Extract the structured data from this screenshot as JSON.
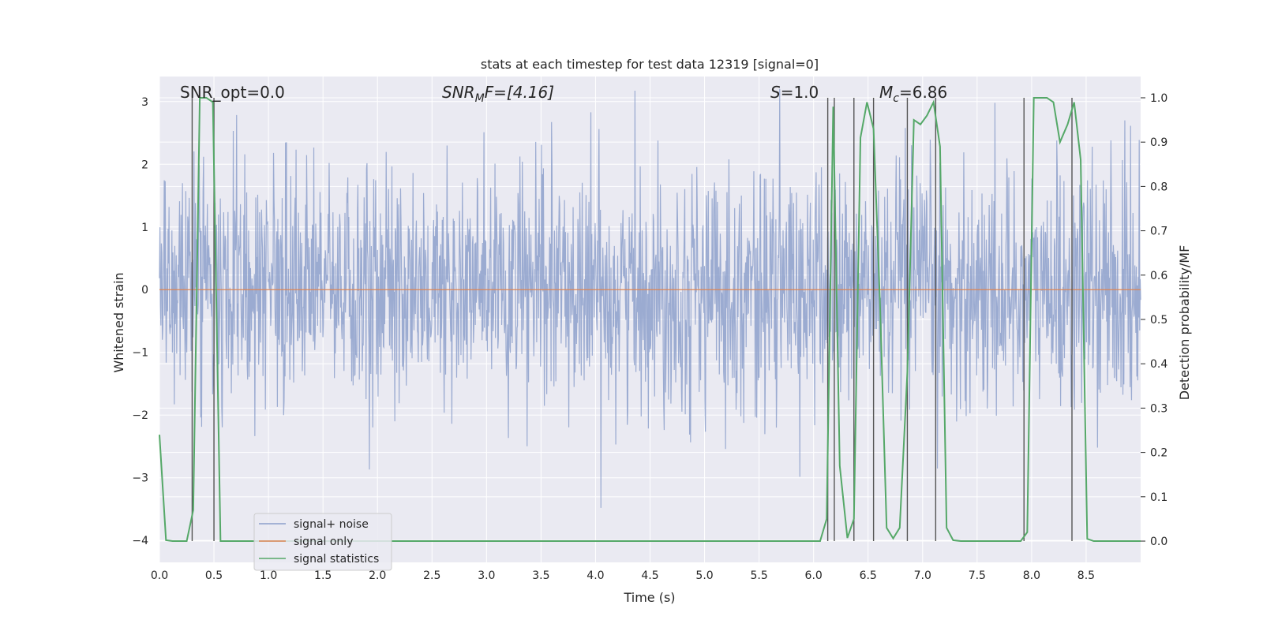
{
  "chart_data": {
    "type": "line",
    "title": "stats at each timestep for test data 12319 [signal=0]",
    "xlabel": "Time (s)",
    "ylabel": "Whitened strain",
    "y2label": "Detection probability/MF",
    "xlim": [
      0.0,
      9.0
    ],
    "ylim": [
      -4.35,
      3.4
    ],
    "y2lim": [
      -0.048,
      1.048
    ],
    "xticks": [
      0.0,
      0.5,
      1.0,
      1.5,
      2.0,
      2.5,
      3.0,
      3.5,
      4.0,
      4.5,
      5.0,
      5.5,
      6.0,
      6.5,
      7.0,
      7.5,
      8.0,
      8.5
    ],
    "xtick_labels": [
      "0.0",
      "0.5",
      "1.0",
      "1.5",
      "2.0",
      "2.5",
      "3.0",
      "3.5",
      "4.0",
      "4.5",
      "5.0",
      "5.5",
      "6.0",
      "6.5",
      "7.0",
      "7.5",
      "8.0",
      "8.5"
    ],
    "yticks": [
      -4,
      -3,
      -2,
      -1,
      0,
      1,
      2,
      3
    ],
    "ytick_labels": [
      "−4",
      "−3",
      "−2",
      "−1",
      "0",
      "1",
      "2",
      "3"
    ],
    "y2ticks": [
      0.0,
      0.1,
      0.2,
      0.3,
      0.4,
      0.5,
      0.6,
      0.7,
      0.8,
      0.9,
      1.0
    ],
    "y2tick_labels": [
      "0.0",
      "0.1",
      "0.2",
      "0.3",
      "0.4",
      "0.5",
      "0.6",
      "0.7",
      "0.8",
      "0.9",
      "1.0"
    ],
    "legend": {
      "position": "lower-left",
      "entries": [
        "signal+ noise",
        "signal only",
        "signal statistics"
      ]
    },
    "annotations": {
      "snr_opt": "SNR_opt=0.0",
      "snr_mf_main": "SNR",
      "snr_mf_sub": "M",
      "snr_mf_rest": "F=[4.16]",
      "s_main": "S",
      "s_rest": "=1.0",
      "mc_main": "M",
      "mc_sub": "c",
      "mc_rest": "=6.86"
    },
    "series": [
      {
        "name": "signal+ noise",
        "axis": "left",
        "color": "#8da0cb",
        "description": "whitened strain noise, amplitude ~±2.5 with peaks to ±3",
        "x_range": [
          0.0,
          9.0
        ],
        "n_samples": 2048,
        "std": 0.95,
        "peak_abs": 3.2
      },
      {
        "name": "signal only",
        "axis": "left",
        "color": "#dd8452",
        "x": [
          0.0,
          9.0
        ],
        "y": [
          0.0,
          0.0
        ]
      },
      {
        "name": "signal statistics",
        "axis": "right",
        "color": "#55a868",
        "x": [
          0.0,
          0.06,
          0.12,
          0.18,
          0.25,
          0.31,
          0.37,
          0.43,
          0.49,
          0.56,
          0.62,
          0.68,
          0.74,
          0.8,
          0.86,
          0.92,
          0.99,
          1.05,
          1.5,
          2.0,
          2.5,
          3.0,
          3.5,
          4.0,
          4.5,
          5.0,
          5.5,
          6.0,
          6.06,
          6.12,
          6.18,
          6.24,
          6.31,
          6.37,
          6.43,
          6.49,
          6.55,
          6.61,
          6.67,
          6.73,
          6.79,
          6.86,
          6.92,
          6.98,
          7.04,
          7.1,
          7.16,
          7.22,
          7.28,
          7.35,
          7.41,
          7.47,
          7.53,
          7.6,
          7.66,
          7.72,
          7.78,
          7.84,
          7.9,
          7.96,
          8.02,
          8.08,
          8.14,
          8.2,
          8.26,
          8.33,
          8.39,
          8.45,
          8.51,
          8.57,
          8.63,
          9.0
        ],
        "y": [
          0.24,
          0.002,
          0.0,
          0.0,
          0.0,
          0.07,
          1.0,
          1.0,
          0.99,
          0.0,
          0.0,
          0.0,
          0.0,
          0.0,
          0.0,
          0.0,
          0.0,
          0.0,
          0.0,
          0.0,
          0.0,
          0.0,
          0.0,
          0.0,
          0.0,
          0.0,
          0.0,
          0.0,
          0.0,
          0.05,
          0.98,
          0.17,
          0.007,
          0.05,
          0.91,
          0.99,
          0.93,
          0.53,
          0.03,
          0.006,
          0.03,
          0.38,
          0.95,
          0.94,
          0.96,
          0.99,
          0.89,
          0.03,
          0.002,
          0.0,
          0.0,
          0.0,
          0.0,
          0.0,
          0.0,
          0.0,
          0.0,
          0.0,
          0.0,
          0.02,
          1.0,
          1.0,
          1.0,
          0.99,
          0.9,
          0.94,
          0.99,
          0.86,
          0.005,
          0.0,
          0.0,
          0.0
        ]
      }
    ],
    "vertical_markers": [
      0.3,
      0.5,
      6.13,
      6.19,
      6.37,
      6.55,
      6.86,
      7.12,
      7.93,
      8.37
    ]
  }
}
